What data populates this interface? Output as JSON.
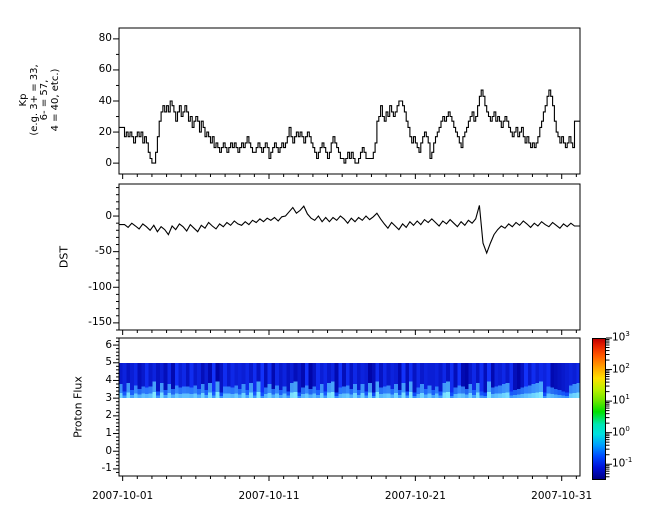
{
  "figure": {
    "background": "#ffffff",
    "axis_color": "#000000",
    "series_color": "#000000"
  },
  "x_axis": {
    "tick_labels": [
      "2007-10-01",
      "2007-10-11",
      "2007-10-21",
      "2007-10-31"
    ],
    "major_tick_days": [
      0,
      10,
      20,
      30
    ],
    "minor_tick_every_days": 1,
    "domain_days": [
      -0.25,
      31.25
    ]
  },
  "chart_data": [
    {
      "id": "kp",
      "type": "line",
      "line_style": "step",
      "ylabel_lines": [
        "Kp",
        "(e.g. 3+ = 33,",
        "6- = 57,",
        "4 = 40, etc.)"
      ],
      "ylim": [
        -7,
        87
      ],
      "yticks": [
        0,
        20,
        40,
        60,
        80
      ],
      "ytick_minor_step": 10,
      "x_start_day": 0,
      "x_step_days": 0.125,
      "values": [
        23,
        17,
        20,
        17,
        20,
        17,
        13,
        17,
        20,
        17,
        20,
        13,
        17,
        13,
        7,
        3,
        0,
        0,
        7,
        17,
        27,
        33,
        37,
        33,
        37,
        33,
        40,
        37,
        33,
        27,
        33,
        37,
        30,
        33,
        37,
        33,
        27,
        30,
        23,
        27,
        30,
        27,
        20,
        27,
        23,
        17,
        20,
        17,
        13,
        17,
        10,
        13,
        10,
        7,
        10,
        13,
        10,
        7,
        10,
        13,
        10,
        13,
        10,
        7,
        10,
        13,
        10,
        13,
        17,
        13,
        10,
        7,
        7,
        10,
        13,
        10,
        7,
        10,
        13,
        10,
        3,
        7,
        10,
        13,
        10,
        7,
        10,
        13,
        10,
        13,
        17,
        23,
        17,
        13,
        17,
        20,
        17,
        20,
        17,
        13,
        17,
        20,
        17,
        13,
        10,
        7,
        3,
        7,
        10,
        13,
        10,
        7,
        3,
        7,
        13,
        17,
        13,
        10,
        7,
        3,
        3,
        0,
        3,
        7,
        3,
        7,
        3,
        0,
        0,
        3,
        7,
        10,
        7,
        3,
        3,
        3,
        3,
        7,
        13,
        27,
        30,
        37,
        30,
        27,
        33,
        30,
        37,
        33,
        30,
        33,
        37,
        40,
        40,
        37,
        33,
        27,
        23,
        17,
        13,
        17,
        13,
        10,
        7,
        13,
        17,
        20,
        17,
        13,
        3,
        7,
        13,
        17,
        20,
        23,
        27,
        30,
        27,
        30,
        33,
        30,
        27,
        23,
        20,
        17,
        13,
        10,
        17,
        20,
        23,
        27,
        30,
        33,
        27,
        30,
        37,
        43,
        47,
        43,
        37,
        33,
        30,
        27,
        30,
        33,
        27,
        30,
        27,
        23,
        27,
        30,
        27,
        23,
        20,
        17,
        20,
        23,
        17,
        20,
        23,
        17,
        13,
        17,
        13,
        10,
        13,
        10,
        13,
        17,
        23,
        27,
        33,
        37,
        43,
        47,
        43,
        37,
        27,
        20,
        17,
        13,
        17,
        13,
        10,
        13,
        17,
        13,
        10,
        27
      ]
    },
    {
      "id": "dst",
      "type": "line",
      "ylabel": "DST",
      "ylim": [
        -160,
        45
      ],
      "yticks": [
        0,
        -50,
        -100,
        -150
      ],
      "ytick_minor_step": 10,
      "x_start_day": 0.125,
      "x_step_days": 0.25,
      "values": [
        -12,
        -16,
        -10,
        -14,
        -18,
        -11,
        -15,
        -20,
        -13,
        -22,
        -15,
        -19,
        -26,
        -14,
        -19,
        -11,
        -15,
        -21,
        -12,
        -17,
        -22,
        -13,
        -17,
        -9,
        -14,
        -18,
        -11,
        -15,
        -9,
        -13,
        -7,
        -11,
        -13,
        -8,
        -12,
        -6,
        -9,
        -4,
        -8,
        -3,
        -6,
        -2,
        -7,
        -1,
        0,
        6,
        12,
        4,
        8,
        14,
        3,
        -3,
        -6,
        0,
        -8,
        -2,
        -8,
        -2,
        -6,
        0,
        -4,
        -10,
        -3,
        -8,
        -2,
        -6,
        0,
        -5,
        -1,
        4,
        -4,
        -11,
        -17,
        -9,
        -14,
        -19,
        -11,
        -16,
        -8,
        -13,
        -7,
        -12,
        -5,
        -9,
        -4,
        -9,
        -14,
        -7,
        -11,
        -5,
        -10,
        -15,
        -8,
        -13,
        -6,
        -10,
        -4,
        15,
        -38,
        -52,
        -38,
        -26,
        -19,
        -14,
        -17,
        -11,
        -15,
        -9,
        -13,
        -7,
        -11,
        -16,
        -10,
        -14,
        -8,
        -12,
        -15,
        -9,
        -13,
        -17,
        -11,
        -15,
        -10,
        -14
      ]
    },
    {
      "id": "proton",
      "type": "heatmap",
      "ylabel": "Proton Flux",
      "ylim": [
        -1.4,
        6.4
      ],
      "yticks": [
        6,
        5,
        4,
        3,
        2,
        1,
        0,
        -1
      ],
      "ytick_minor_step": 0.2,
      "band_y_range": [
        3,
        5
      ],
      "band_flux_log10_range": [
        -1,
        0.5
      ],
      "column_shade_digits": "4635724846352719573846251903847565748392817463524190385746192837465028374651928374655647382910473829165748203948576812345657",
      "column_bright_digits": "7182635459182736455463728190554637281904736251890463527189045637271809456372819047362518904653728109456781234567890543210678",
      "palette": {
        "band_dark_blue": "#0005a8",
        "band_blue": "#1232ff",
        "band_light_blue": "#2e8cff",
        "band_cyan": "#64c8ff"
      }
    }
  ],
  "colorbar": {
    "base": "10",
    "exponents": [
      "3",
      "2",
      "1",
      "0",
      "-1"
    ],
    "log_range": [
      -1.5,
      3
    ],
    "colormap": "jet"
  }
}
